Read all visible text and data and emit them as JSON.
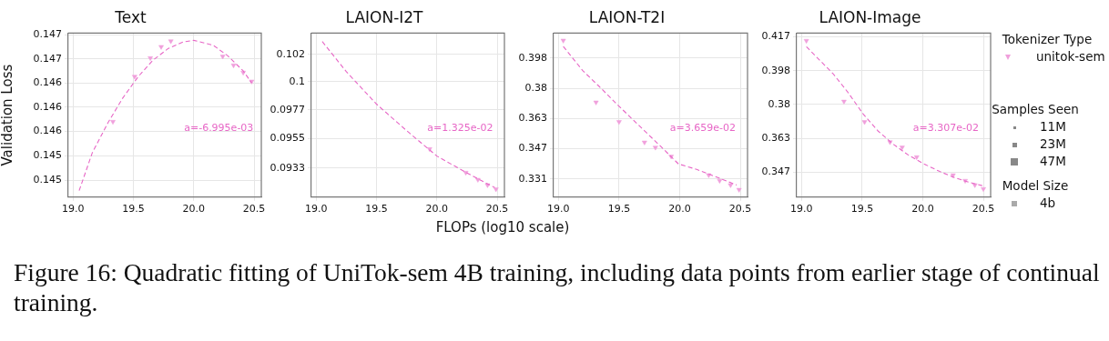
{
  "chart_data": [
    {
      "type": "scatter",
      "title": "Text",
      "ylabel": "Validation Loss",
      "log": "y",
      "grid": true,
      "xlim": [
        18.96,
        20.56
      ],
      "xticks": [
        {
          "value": 19,
          "label": "19.0"
        },
        {
          "value": 19.5,
          "label": "19.5"
        },
        {
          "value": 20,
          "label": "20.0"
        },
        {
          "value": 20.5,
          "label": "20.5"
        }
      ],
      "ylim": [
        0.14489,
        0.14692
      ],
      "yticks": [
        {
          "value": 0.1451,
          "label": "0.145"
        },
        {
          "value": 0.1454,
          "label": "0.145"
        },
        {
          "value": 0.1457,
          "label": "0.146"
        },
        {
          "value": 0.146,
          "label": "0.146"
        },
        {
          "value": 0.1463,
          "label": "0.146"
        },
        {
          "value": 0.1466,
          "label": "0.147"
        },
        {
          "value": 0.1469,
          "label": "0.147"
        }
      ],
      "series": [
        {
          "name": "a=-6.995e-03",
          "type": "line",
          "line_style": "dashed",
          "marker": "none",
          "color": "#e766c6",
          "x": [
            19.05,
            19.16,
            19.29,
            19.41,
            19.54,
            19.66,
            19.79,
            19.91,
            20.0,
            20.16,
            20.28,
            20.41,
            20.48
          ],
          "values": [
            0.14497,
            0.14544,
            0.14581,
            0.14611,
            0.14638,
            0.14658,
            0.14673,
            0.14681,
            0.14683,
            0.14677,
            0.14664,
            0.14645,
            0.1463
          ]
        },
        {
          "marker": "triangle",
          "color": "#f0a0dc",
          "x": [
            19.33,
            19.51,
            19.64,
            19.73,
            19.81,
            20.24,
            20.33,
            20.41,
            20.48
          ],
          "values": [
            0.14582,
            0.14638,
            0.14661,
            0.14675,
            0.14682,
            0.14663,
            0.14652,
            0.14643,
            0.14632
          ]
        }
      ],
      "annotations": [
        "Figure 16:  Quadratic fitting of UniTok-sem 4B training, including data points from earlier stage of continual training."
      ]
    },
    {
      "type": "scatter",
      "title": "LAION-I2T",
      "xlabel": "FLOPs (log10 scale)",
      "log": "y",
      "grid": true,
      "xlim": [
        18.96,
        20.56
      ],
      "xticks": [
        {
          "value": 19,
          "label": "19.0"
        },
        {
          "value": 19.5,
          "label": "19.5"
        },
        {
          "value": 20,
          "label": "20.0"
        },
        {
          "value": 20.5,
          "label": "20.5"
        }
      ],
      "ylim": [
        0.09114,
        0.10394
      ],
      "yticks": [
        {
          "value": 0.0933,
          "label": "0.0933"
        },
        {
          "value": 0.09552,
          "label": "0.0955"
        },
        {
          "value": 0.09774,
          "label": "0.0977"
        },
        {
          "value": 0.09996,
          "label": "0.1"
        },
        {
          "value": 0.10218,
          "label": "0.102"
        }
      ],
      "series": [
        {
          "name": "a=1.325e-02",
          "type": "line",
          "line_style": "dashed",
          "marker": "none",
          "color": "#e766c6",
          "x": [
            19.05,
            19.25,
            19.5,
            19.75,
            20.0,
            20.25,
            20.48
          ],
          "values": [
            0.10324,
            0.10077,
            0.09819,
            0.09612,
            0.09419,
            0.09292,
            0.09184
          ]
        },
        {
          "marker": "triangle",
          "color": "#f0a0dc",
          "x": [
            19.94,
            20.24,
            20.34,
            20.42,
            20.49
          ],
          "values": [
            0.09473,
            0.09295,
            0.09243,
            0.09203,
            0.09173
          ]
        }
      ]
    },
    {
      "type": "scatter",
      "title": "LAION-T2I",
      "log": "y",
      "grid": true,
      "xlim": [
        18.96,
        20.56
      ],
      "xticks": [
        {
          "value": 19,
          "label": "19.0"
        },
        {
          "value": 19.5,
          "label": "19.5"
        },
        {
          "value": 20,
          "label": "20.0"
        },
        {
          "value": 20.5,
          "label": "20.5"
        }
      ],
      "ylim": [
        0.3222,
        0.4135
      ],
      "yticks": [
        {
          "value": 0.3312,
          "label": "0.331"
        },
        {
          "value": 0.3468,
          "label": "0.347"
        },
        {
          "value": 0.3631,
          "label": "0.363"
        },
        {
          "value": 0.3802,
          "label": "0.38"
        },
        {
          "value": 0.3981,
          "label": "0.398"
        }
      ],
      "series": [
        {
          "name": "a=3.659e-02",
          "type": "line",
          "line_style": "dashed",
          "marker": "none",
          "color": "#e766c6",
          "x": [
            19.04,
            19.2,
            19.33,
            19.49,
            19.71,
            19.84,
            19.99,
            20.14,
            20.3,
            20.47
          ],
          "values": [
            0.4052,
            0.3906,
            0.3817,
            0.3706,
            0.3564,
            0.3483,
            0.3389,
            0.3361,
            0.3323,
            0.3282
          ]
        },
        {
          "marker": "triangle",
          "color": "#f0a0dc",
          "x": [
            19.04,
            19.31,
            19.5,
            19.71,
            19.8,
            19.93,
            20.24,
            20.33,
            20.42,
            20.49
          ],
          "values": [
            0.4089,
            0.3722,
            0.3613,
            0.3502,
            0.3475,
            0.3428,
            0.3332,
            0.3304,
            0.3282,
            0.3259
          ]
        }
      ]
    },
    {
      "type": "scatter",
      "title": "LAION-Image",
      "log": "y",
      "grid": true,
      "legend": "right",
      "legend_title": "Tokenizer Type",
      "xlim": [
        18.96,
        20.56
      ],
      "xticks": [
        {
          "value": 19,
          "label": "19.0"
        },
        {
          "value": 19.5,
          "label": "19.5"
        },
        {
          "value": 20,
          "label": "20.0"
        },
        {
          "value": 20.5,
          "label": "20.5"
        }
      ],
      "ylim": [
        0.3352,
        0.419
      ],
      "yticks": [
        {
          "value": 0.3468,
          "label": "0.347"
        },
        {
          "value": 0.3631,
          "label": "0.363"
        },
        {
          "value": 0.3802,
          "label": "0.38"
        },
        {
          "value": 0.3981,
          "label": "0.398"
        },
        {
          "value": 0.4169,
          "label": "0.417"
        }
      ],
      "series": [
        {
          "name": "a=3.307e-02",
          "type": "line",
          "line_style": "dashed",
          "marker": "none",
          "color": "#e766c6",
          "x": [
            19.04,
            19.26,
            19.38,
            19.51,
            19.63,
            19.76,
            19.88,
            20.01,
            20.14,
            20.26,
            20.39,
            20.49
          ],
          "values": [
            0.4113,
            0.3965,
            0.3868,
            0.3752,
            0.3668,
            0.3601,
            0.355,
            0.3507,
            0.3471,
            0.3443,
            0.3419,
            0.3405
          ]
        },
        {
          "name": "unitok-sem",
          "marker": "triangle",
          "color": "#f0a0dc",
          "x": [
            19.04,
            19.35,
            19.52,
            19.73,
            19.83,
            19.95,
            20.25,
            20.35,
            20.43,
            20.5
          ],
          "values": [
            0.4147,
            0.3818,
            0.3713,
            0.3613,
            0.3587,
            0.354,
            0.3454,
            0.3428,
            0.3408,
            0.339
          ]
        }
      ],
      "annotations": [
        "Samples Seen",
        "11M",
        "23M",
        "47M",
        "Model Size",
        "4b"
      ]
    }
  ]
}
